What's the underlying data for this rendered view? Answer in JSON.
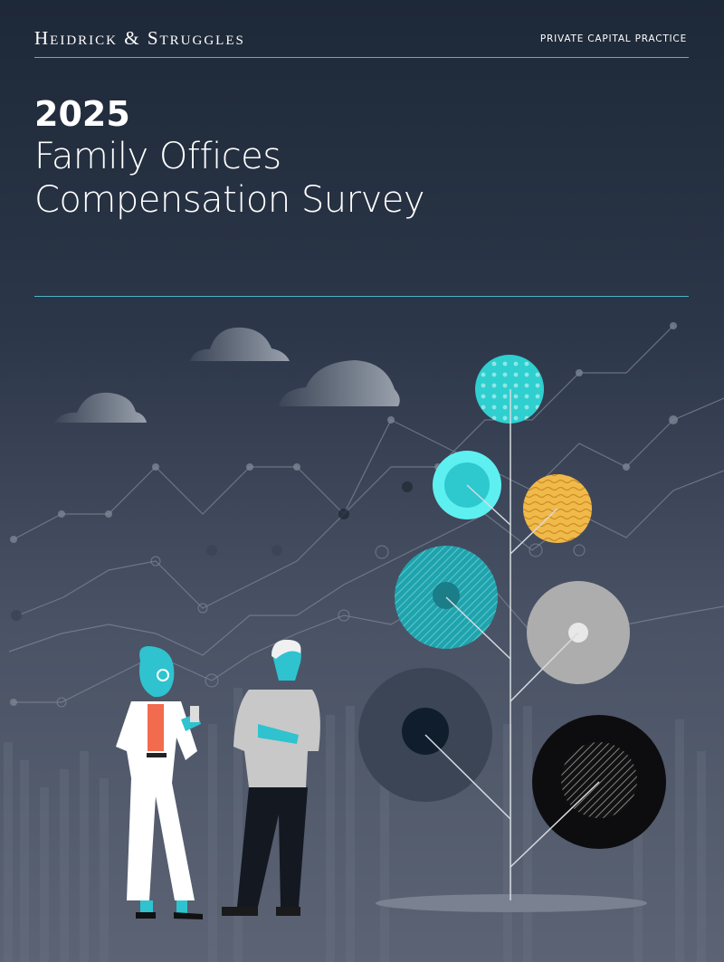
{
  "header": {
    "brand": "Heidrick & Struggles",
    "practice": "PRIVATE CAPITAL PRACTICE"
  },
  "title": {
    "year": "2025",
    "line1": "Family Offices",
    "line2": "Compensation Survey"
  }
}
